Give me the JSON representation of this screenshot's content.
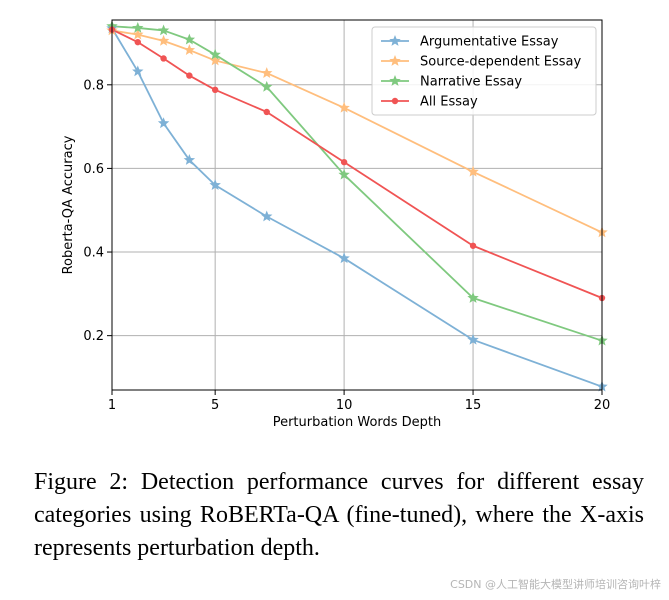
{
  "chart_data": {
    "type": "line",
    "xlabel": "Perturbation Words Depth",
    "ylabel": "Roberta-QA Accuracy",
    "xlim": [
      1,
      20
    ],
    "ylim": [
      0.07,
      0.955
    ],
    "xticks": [
      1,
      5,
      10,
      15,
      20
    ],
    "yticks": [
      0.2,
      0.4,
      0.6,
      0.8
    ],
    "grid": true,
    "legend_position": "top-right",
    "series": [
      {
        "name": "Argumentative Essay",
        "color": "#7eb1d6",
        "marker": "star",
        "x": [
          1,
          2,
          3,
          4,
          5,
          7,
          10,
          15,
          20
        ],
        "y": [
          0.935,
          0.832,
          0.708,
          0.62,
          0.56,
          0.485,
          0.385,
          0.19,
          0.078
        ]
      },
      {
        "name": "Source-dependent Essay",
        "color": "#ffbe7d",
        "marker": "star",
        "x": [
          1,
          2,
          3,
          4,
          5,
          7,
          10,
          15,
          20
        ],
        "y": [
          0.93,
          0.92,
          0.905,
          0.883,
          0.858,
          0.828,
          0.745,
          0.592,
          0.447
        ]
      },
      {
        "name": "Narrative Essay",
        "color": "#7fc97f",
        "marker": "star",
        "x": [
          1,
          2,
          3,
          4,
          5,
          7,
          10,
          15,
          20
        ],
        "y": [
          0.94,
          0.936,
          0.93,
          0.908,
          0.872,
          0.795,
          0.585,
          0.29,
          0.188
        ]
      },
      {
        "name": "All Essay",
        "color": "#f05454",
        "marker": "circle",
        "x": [
          1,
          2,
          3,
          4,
          5,
          7,
          10,
          15,
          20
        ],
        "y": [
          0.932,
          0.902,
          0.863,
          0.822,
          0.788,
          0.735,
          0.615,
          0.415,
          0.29
        ]
      }
    ]
  },
  "caption": {
    "text": "Figure 2: Detection performance curves for different essay categories using RoBERTa-QA (fine-tuned), where the X-axis represents perturbation depth."
  },
  "watermark": "CSDN @人工智能大模型讲师培训咨询叶梓"
}
